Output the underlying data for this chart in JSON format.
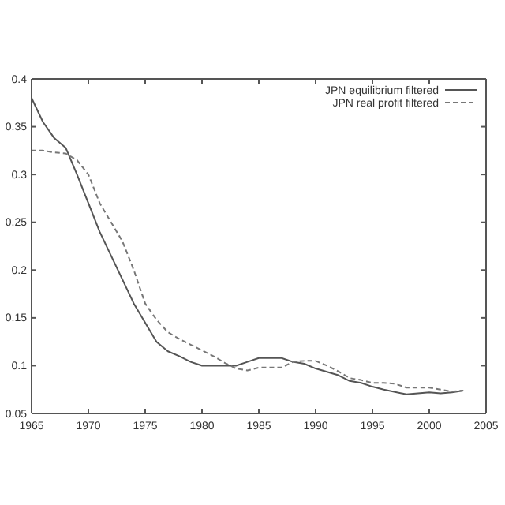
{
  "chart_data": {
    "type": "line",
    "legend": "top right",
    "xlim": [
      1965,
      2005
    ],
    "xticks": [
      1965,
      1970,
      1975,
      1980,
      1985,
      1990,
      1995,
      2000,
      2005
    ],
    "ylim": [
      0.05,
      0.4
    ],
    "yticks": [
      0.05,
      0.1,
      0.15,
      0.2,
      0.25,
      0.3,
      0.35,
      0.4
    ],
    "series": [
      {
        "name": "JPN equilibrium filtered",
        "color": "#555555",
        "line_style": "solid",
        "x": [
          1965,
          1966,
          1967,
          1968,
          1969,
          1970,
          1971,
          1972,
          1973,
          1974,
          1975,
          1976,
          1977,
          1978,
          1979,
          1980,
          1982,
          1983,
          1984,
          1985,
          1987,
          1988,
          1989,
          1990,
          1992,
          1993,
          1994,
          1995,
          1996,
          1998,
          1999,
          2000,
          2001,
          2002,
          2003
        ],
        "values": [
          0.38,
          0.355,
          0.338,
          0.328,
          0.3,
          0.27,
          0.24,
          0.215,
          0.19,
          0.165,
          0.145,
          0.125,
          0.115,
          0.11,
          0.104,
          0.1,
          0.1,
          0.1,
          0.104,
          0.108,
          0.108,
          0.104,
          0.102,
          0.097,
          0.09,
          0.084,
          0.082,
          0.078,
          0.075,
          0.07,
          0.071,
          0.072,
          0.071,
          0.072,
          0.074
        ]
      },
      {
        "name": "JPN real profit filtered",
        "color": "#777777",
        "line_style": "dashed",
        "x": [
          1965,
          1966,
          1967,
          1968,
          1969,
          1970,
          1971,
          1972,
          1973,
          1974,
          1975,
          1976,
          1977,
          1978,
          1979,
          1980,
          1981,
          1982,
          1983,
          1984,
          1985,
          1986,
          1987,
          1988,
          1989,
          1990,
          1991,
          1992,
          1993,
          1994,
          1995,
          1996,
          1997,
          1998,
          1999,
          2000,
          2001,
          2002,
          2003
        ],
        "values": [
          0.325,
          0.325,
          0.323,
          0.322,
          0.315,
          0.3,
          0.27,
          0.25,
          0.23,
          0.2,
          0.165,
          0.148,
          0.135,
          0.128,
          0.122,
          0.116,
          0.11,
          0.103,
          0.097,
          0.095,
          0.098,
          0.098,
          0.098,
          0.104,
          0.105,
          0.105,
          0.1,
          0.094,
          0.087,
          0.085,
          0.082,
          0.082,
          0.081,
          0.077,
          0.077,
          0.077,
          0.075,
          0.073,
          0.074
        ]
      }
    ]
  }
}
